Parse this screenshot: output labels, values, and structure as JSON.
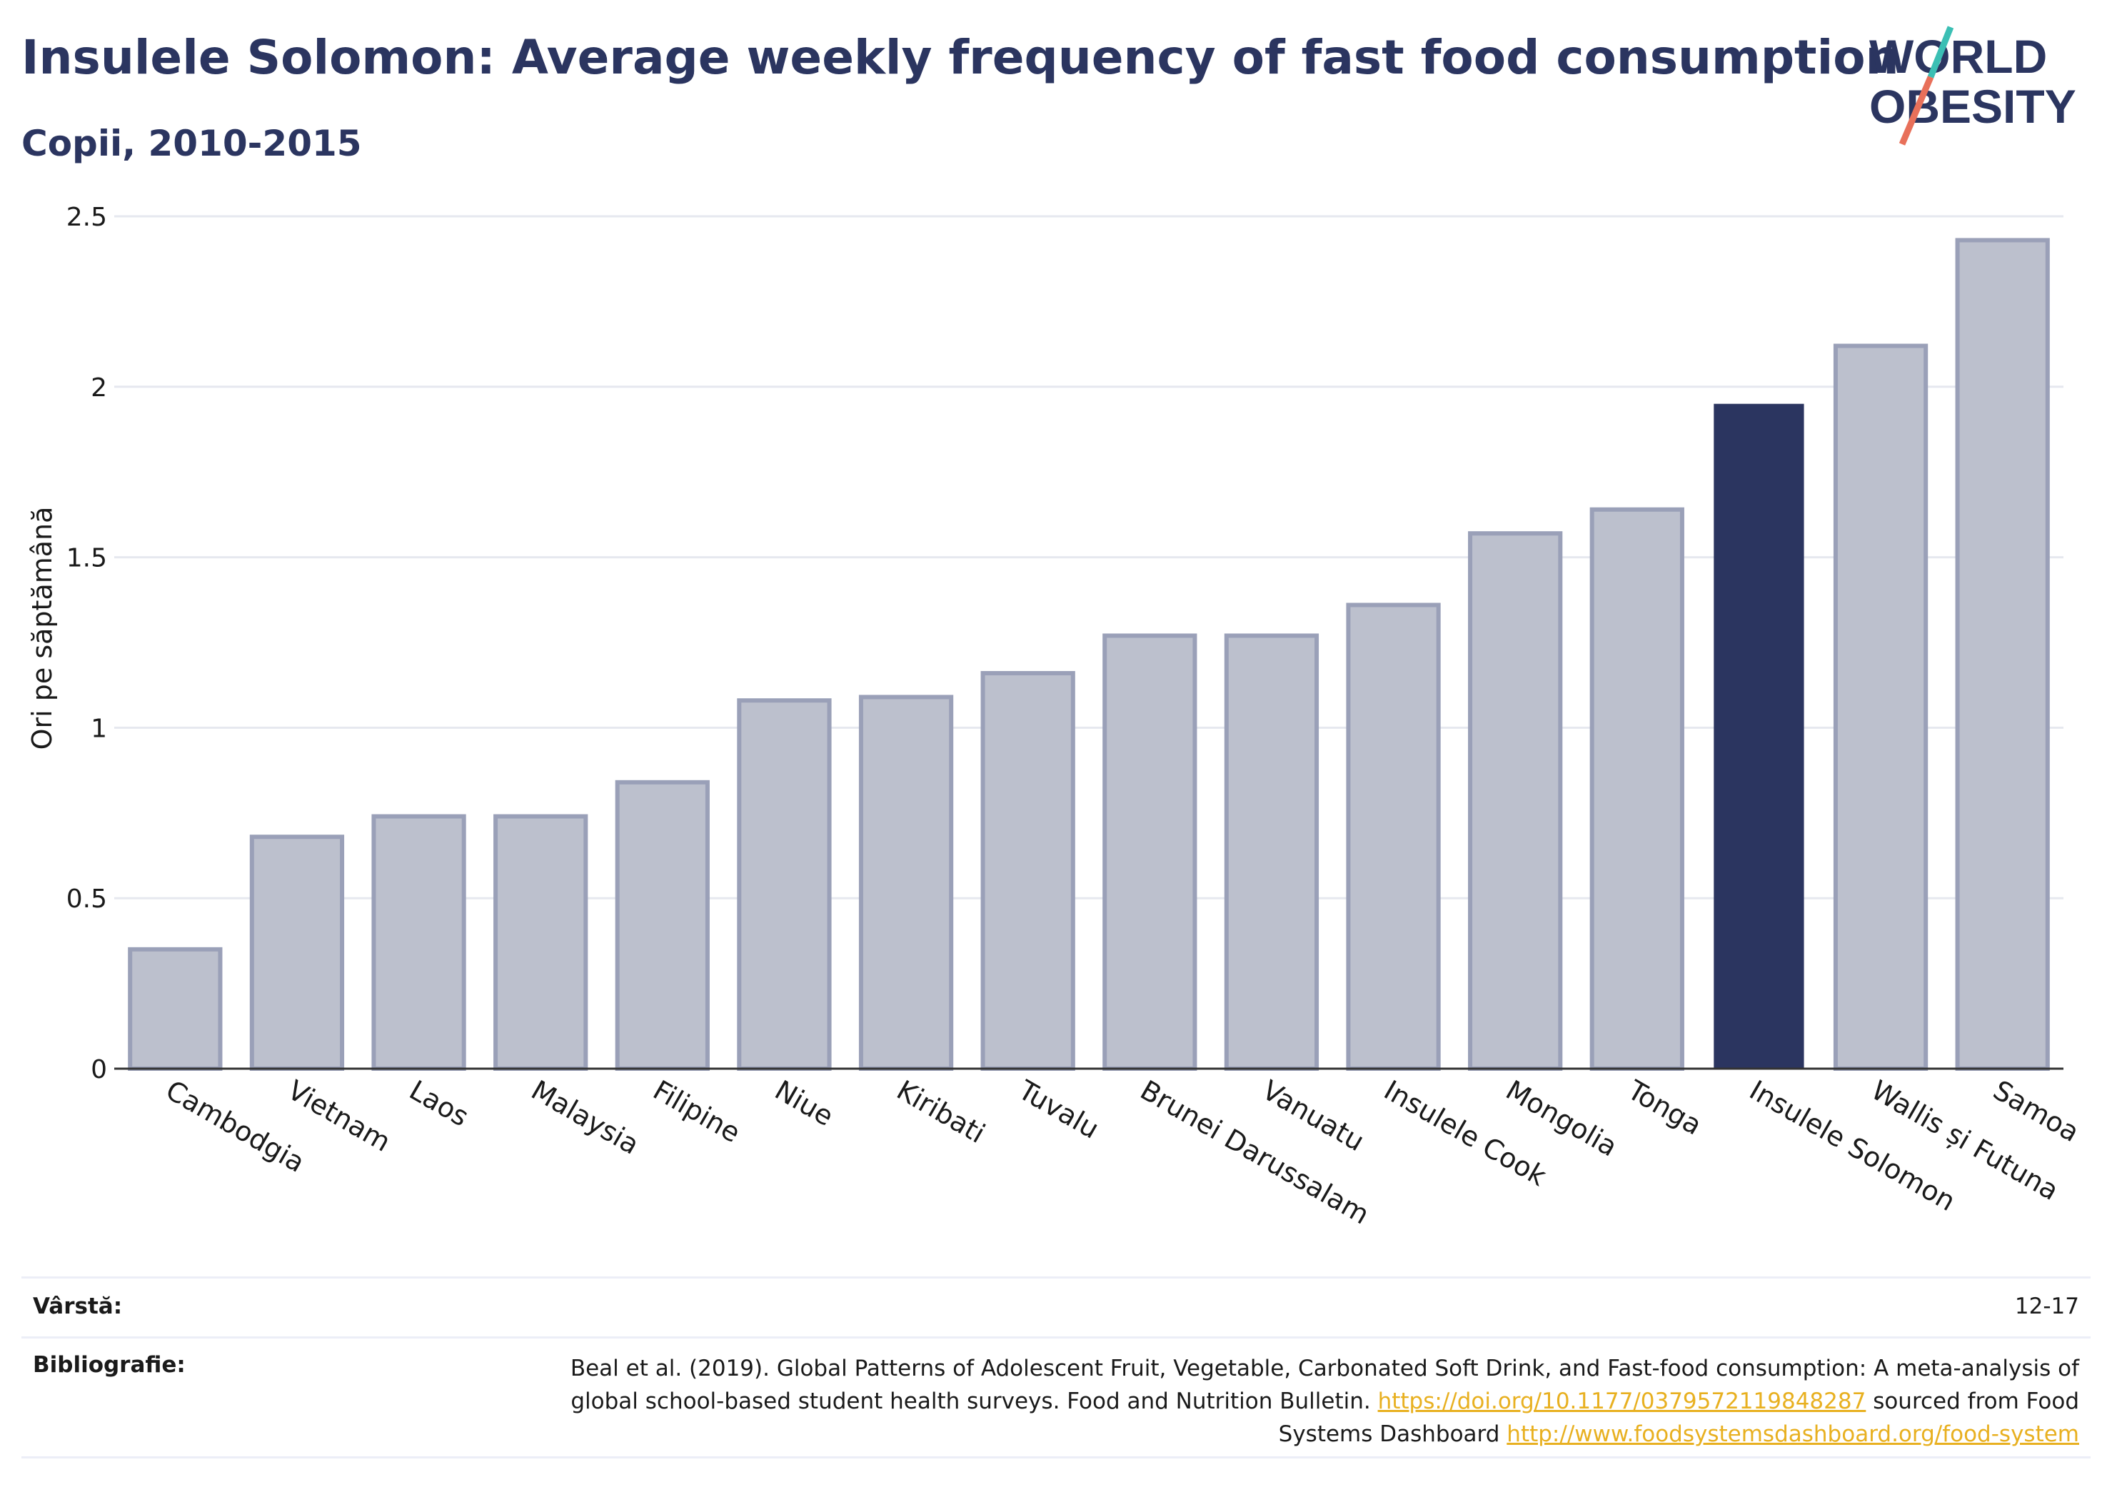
{
  "header": {
    "title": "Insulele Solomon: Average weekly frequency of fast food consumption",
    "subtitle": "Copii, 2010-2015"
  },
  "logo": {
    "line1": "WORLD",
    "line2": "OBESITY",
    "colors": {
      "text": "#2b3560",
      "slash_top": "#3bbfb4",
      "slash_bottom": "#e8705a"
    }
  },
  "chart_data": {
    "type": "bar",
    "ylabel": "Ori pe săptămână",
    "xlabel": "",
    "ylim": [
      0,
      2.5
    ],
    "yticks": [
      0,
      0.5,
      1,
      1.5,
      2,
      2.5
    ],
    "ytick_labels": [
      "0",
      "0.5",
      "1",
      "1.5",
      "2",
      "2.5"
    ],
    "grid": true,
    "categories": [
      "Cambodgia",
      "Vietnam",
      "Laos",
      "Malaysia",
      "Filipine",
      "Niue",
      "Kiribati",
      "Tuvalu",
      "Brunei Darussalam",
      "Vanuatu",
      "Insulele Cook",
      "Mongolia",
      "Tonga",
      "Insulele Solomon",
      "Wallis și Futuna",
      "Samoa"
    ],
    "values": [
      0.35,
      0.68,
      0.74,
      0.74,
      0.84,
      1.08,
      1.09,
      1.16,
      1.27,
      1.27,
      1.36,
      1.57,
      1.64,
      1.95,
      2.12,
      2.43
    ],
    "highlight": "Insulele Solomon",
    "colors": {
      "bar": "#bcc0cd",
      "bar_border": "#9aa0b8",
      "highlight": "#2b3560",
      "grid": "#e6e8ef",
      "axis": "#333333"
    }
  },
  "footer": {
    "age_label": "Vârstă:",
    "age_value": "12-17",
    "bib_label": "Bibliografie:",
    "bib_text_1": "Beal et al. (2019). Global Patterns of Adolescent Fruit, Vegetable, Carbonated Soft Drink, and Fast-food consumption: A meta-analysis of global school-based student health surveys. Food and Nutrition Bulletin.",
    "bib_link_1": "https://doi.org/10.1177/0379572119848287",
    "bib_text_2": "sourced from Food Systems Dashboard",
    "bib_link_2": "http://www.foodsystemsdashboard.org/food-system"
  }
}
